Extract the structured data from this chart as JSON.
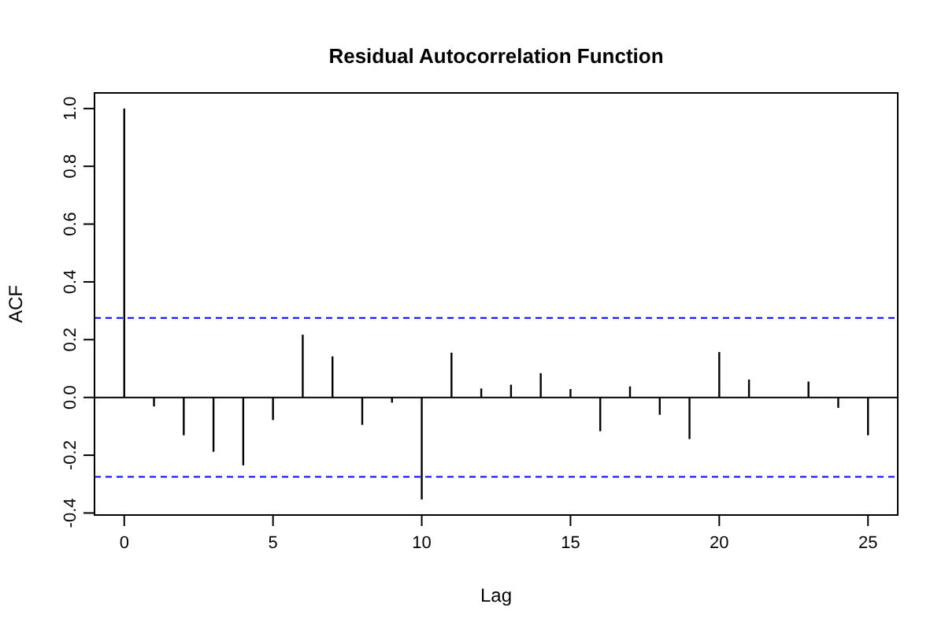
{
  "chart_data": {
    "type": "bar",
    "title": "Residual Autocorrelation Function",
    "xlabel": "Lag",
    "ylabel": "ACF",
    "x": [
      0,
      1,
      2,
      3,
      4,
      5,
      6,
      7,
      8,
      9,
      10,
      11,
      12,
      13,
      14,
      15,
      16,
      17,
      18,
      19,
      20,
      21,
      22,
      23,
      24,
      25
    ],
    "values": [
      1.0,
      -0.031,
      -0.131,
      -0.188,
      -0.235,
      -0.078,
      0.217,
      0.142,
      -0.095,
      -0.018,
      -0.353,
      0.155,
      0.031,
      0.044,
      0.084,
      0.029,
      -0.117,
      0.038,
      -0.06,
      -0.144,
      0.157,
      0.062,
      null,
      0.055,
      -0.036,
      -0.131
    ],
    "color": "#000000",
    "xlim": [
      -1,
      26
    ],
    "ylim": [
      -0.407,
      1.054
    ],
    "xticks": [
      0,
      5,
      10,
      15,
      20,
      25
    ],
    "yticks": [
      {
        "value": -0.4,
        "label": "-0.4"
      },
      {
        "value": -0.2,
        "label": "-0.2"
      },
      {
        "value": 0,
        "label": "0.0"
      },
      {
        "value": 0.2,
        "label": "0.2"
      },
      {
        "value": 0.4,
        "label": "0.4"
      },
      {
        "value": 0.6,
        "label": "0.6"
      },
      {
        "value": 0.8,
        "label": "0.8"
      },
      {
        "value": 1,
        "label": "1.0"
      }
    ],
    "ref_lines": [
      {
        "axis": "y",
        "value": 0,
        "color": "#000000",
        "line_style": "solid"
      },
      {
        "axis": "y",
        "value": 0.275,
        "color": "#0000ff",
        "line_style": "dashed"
      },
      {
        "axis": "y",
        "value": -0.275,
        "color": "#0000ff",
        "line_style": "dashed"
      }
    ],
    "grid": false
  }
}
